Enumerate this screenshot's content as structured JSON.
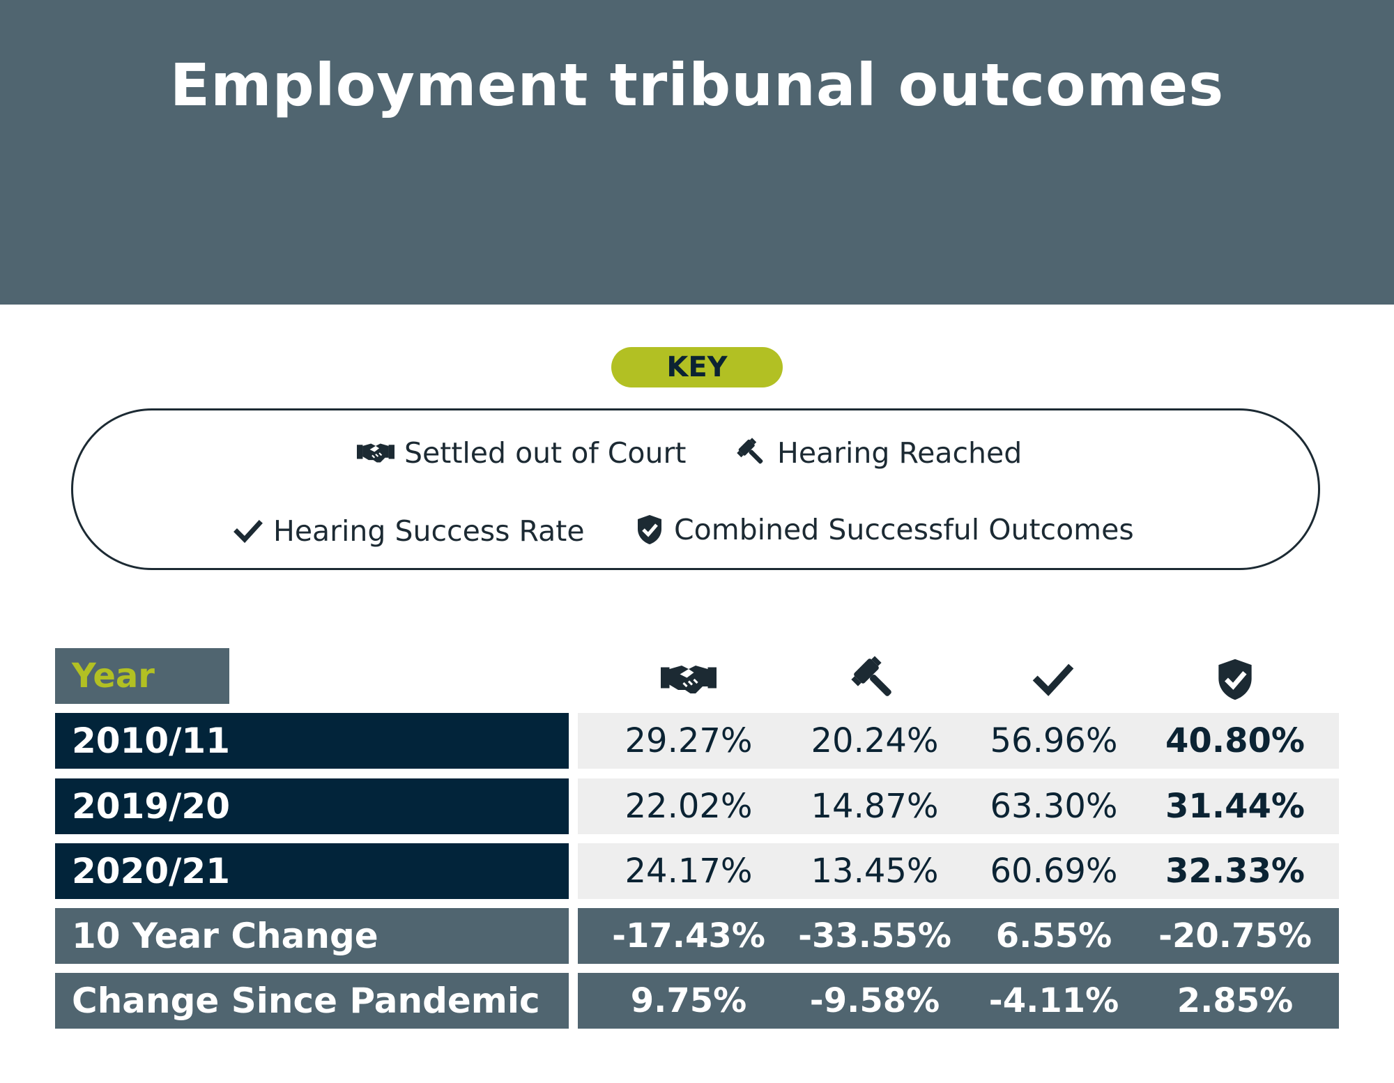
{
  "title": "Employment tribunal outcomes",
  "key": {
    "label": "KEY",
    "items": [
      {
        "icon": "handshake-icon",
        "label": "Settled out of Court"
      },
      {
        "icon": "gavel-icon",
        "label": "Hearing Reached"
      },
      {
        "icon": "check-icon",
        "label": "Hearing Success Rate"
      },
      {
        "icon": "shield-check-icon",
        "label": "Combined Successful Outcomes"
      }
    ]
  },
  "colors": {
    "header_bg": "#506570",
    "accent": "#b2c023",
    "dark_row": "#02243a",
    "light_row": "#eeeeee"
  },
  "chart_data": {
    "type": "table",
    "row_header": "Year",
    "columns": [
      {
        "icon": "handshake-icon",
        "name": "Settled out of Court"
      },
      {
        "icon": "gavel-icon",
        "name": "Hearing Reached"
      },
      {
        "icon": "check-icon",
        "name": "Hearing Success Rate"
      },
      {
        "icon": "shield-check-icon",
        "name": "Combined Successful Outcomes"
      }
    ],
    "rows": [
      {
        "label": "2010/11",
        "values": [
          "29.27%",
          "20.24%",
          "56.96%",
          "40.80%"
        ]
      },
      {
        "label": "2019/20",
        "values": [
          "22.02%",
          "14.87%",
          "63.30%",
          "31.44%"
        ]
      },
      {
        "label": "2020/21",
        "values": [
          "24.17%",
          "13.45%",
          "60.69%",
          "32.33%"
        ]
      },
      {
        "label": "10 Year Change",
        "values": [
          "-17.43%",
          "-33.55%",
          "6.55%",
          "-20.75%"
        ]
      },
      {
        "label": "Change Since Pandemic",
        "values": [
          "9.75%",
          "-9.58%",
          "-4.11%",
          "2.85%"
        ]
      }
    ]
  }
}
